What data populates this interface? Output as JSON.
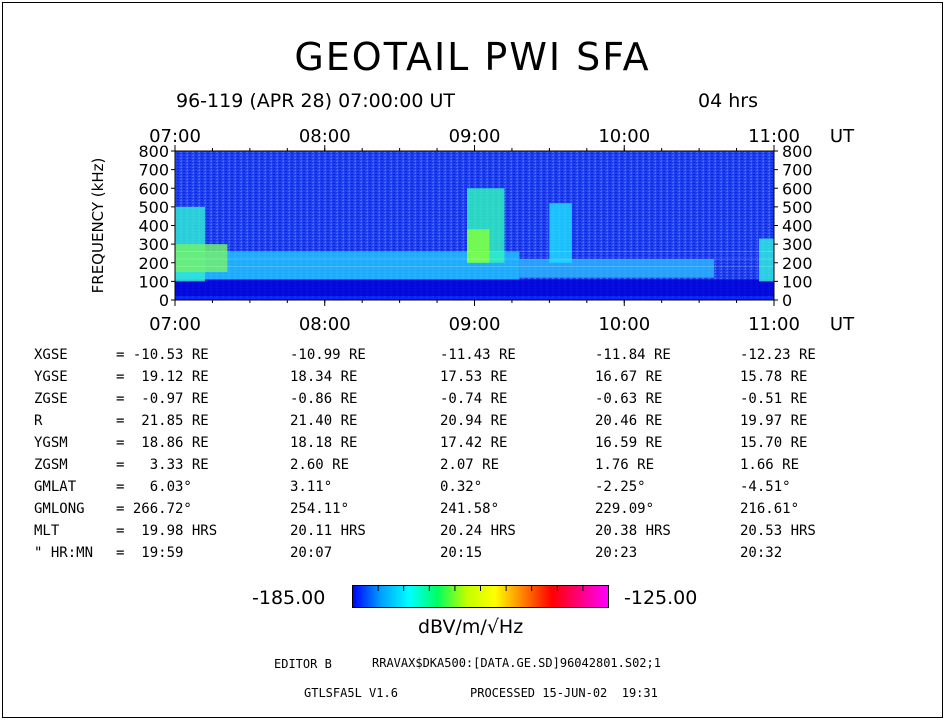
{
  "header": {
    "title": "GEOTAIL PWI SFA",
    "date_line": "96-119 (APR 28) 07:00:00 UT",
    "duration": "04 hrs"
  },
  "chart_data": {
    "type": "heatmap",
    "title": "GEOTAIL PWI SFA",
    "ylabel": "FREQUENCY (kHz)",
    "x_ticks": [
      "07:00",
      "08:00",
      "09:00",
      "10:00",
      "11:00"
    ],
    "x_unit": "UT",
    "xlim_hours": [
      7,
      11
    ],
    "y_ticks": [
      0,
      100,
      200,
      300,
      400,
      500,
      600,
      700,
      800
    ],
    "ylim": [
      0,
      800
    ],
    "colorbar": {
      "min_label": "-185.00",
      "max_label": "-125.00",
      "unit": "dBV/m/√Hz",
      "colors": [
        "#0000ff",
        "#00a0ff",
        "#00ffff",
        "#00ff60",
        "#c0ff00",
        "#ffff00",
        "#ff8000",
        "#ff0000",
        "#ff0080",
        "#ff00ff"
      ]
    },
    "background_color": "#1e40f0",
    "features": [
      {
        "kind": "band",
        "t_start": 7.0,
        "t_end": 11.0,
        "f_low": 0,
        "f_high": 20,
        "intensity": "low",
        "color": "#0a22ff"
      },
      {
        "kind": "band",
        "t_start": 7.0,
        "t_end": 11.0,
        "f_low": 20,
        "f_high": 110,
        "intensity": "very-low",
        "color": "#0000d8"
      },
      {
        "kind": "band",
        "t_start": 7.0,
        "t_end": 9.3,
        "f_low": 110,
        "f_high": 260,
        "intensity": "medium",
        "color": "#22c0ff"
      },
      {
        "kind": "band",
        "t_start": 9.3,
        "t_end": 10.6,
        "f_low": 120,
        "f_high": 220,
        "intensity": "medium",
        "color": "#2ab4ff"
      },
      {
        "kind": "band",
        "t_start": 7.0,
        "t_end": 7.2,
        "f_low": 100,
        "f_high": 500,
        "intensity": "high",
        "color": "#30e8d8"
      },
      {
        "kind": "band",
        "t_start": 7.0,
        "t_end": 7.35,
        "f_low": 150,
        "f_high": 300,
        "intensity": "peak",
        "color": "#70f070"
      },
      {
        "kind": "band",
        "t_start": 8.95,
        "t_end": 9.2,
        "f_low": 200,
        "f_high": 600,
        "intensity": "high",
        "color": "#30f0c0"
      },
      {
        "kind": "band",
        "t_start": 8.95,
        "t_end": 9.1,
        "f_low": 200,
        "f_high": 380,
        "intensity": "peak",
        "color": "#80ff40"
      },
      {
        "kind": "band",
        "t_start": 9.5,
        "t_end": 9.65,
        "f_low": 200,
        "f_high": 520,
        "intensity": "medium",
        "color": "#20d8ff"
      },
      {
        "kind": "band",
        "t_start": 10.9,
        "t_end": 11.0,
        "f_low": 100,
        "f_high": 330,
        "intensity": "high",
        "color": "#30e8e0"
      }
    ]
  },
  "orbit": {
    "rows": [
      {
        "label": "XGSE",
        "values": [
          "= -10.53 RE",
          "-10.99 RE",
          "-11.43 RE",
          "-11.84 RE",
          "-12.23 RE"
        ]
      },
      {
        "label": "YGSE",
        "values": [
          "=  19.12 RE",
          "18.34 RE",
          "17.53 RE",
          "16.67 RE",
          "15.78 RE"
        ]
      },
      {
        "label": "ZGSE",
        "values": [
          "=  -0.97 RE",
          "-0.86 RE",
          "-0.74 RE",
          "-0.63 RE",
          "-0.51 RE"
        ]
      },
      {
        "label": "R",
        "values": [
          "=  21.85 RE",
          "21.40 RE",
          "20.94 RE",
          "20.46 RE",
          "19.97 RE"
        ]
      },
      {
        "label": "YGSM",
        "values": [
          "=  18.86 RE",
          "18.18 RE",
          "17.42 RE",
          "16.59 RE",
          "15.70 RE"
        ]
      },
      {
        "label": "ZGSM",
        "values": [
          "=   3.33 RE",
          "2.60 RE",
          "2.07 RE",
          "1.76 RE",
          "1.66 RE"
        ]
      },
      {
        "label": "GMLAT",
        "values": [
          "=   6.03°",
          "3.11°",
          "0.32°",
          "-2.25°",
          "-4.51°"
        ]
      },
      {
        "label": "GMLONG",
        "values": [
          "= 266.72°",
          "254.11°",
          "241.58°",
          "229.09°",
          "216.61°"
        ]
      },
      {
        "label": "MLT",
        "values": [
          "=  19.98 HRS",
          "20.11 HRS",
          "20.24 HRS",
          "20.38 HRS",
          "20.53 HRS"
        ]
      },
      {
        "label": "\" HR:MN",
        "values": [
          "=  19:59",
          "20:07",
          "20:15",
          "20:23",
          "20:32"
        ]
      }
    ]
  },
  "footer": {
    "editor_label": "EDITOR B",
    "file_path": "RRAVAX$DKA500:[DATA.GE.SD]96042801.S02;1",
    "program": "GTLSFA5L V1.6",
    "processed": "PROCESSED 15-JUN-02  19:31"
  }
}
